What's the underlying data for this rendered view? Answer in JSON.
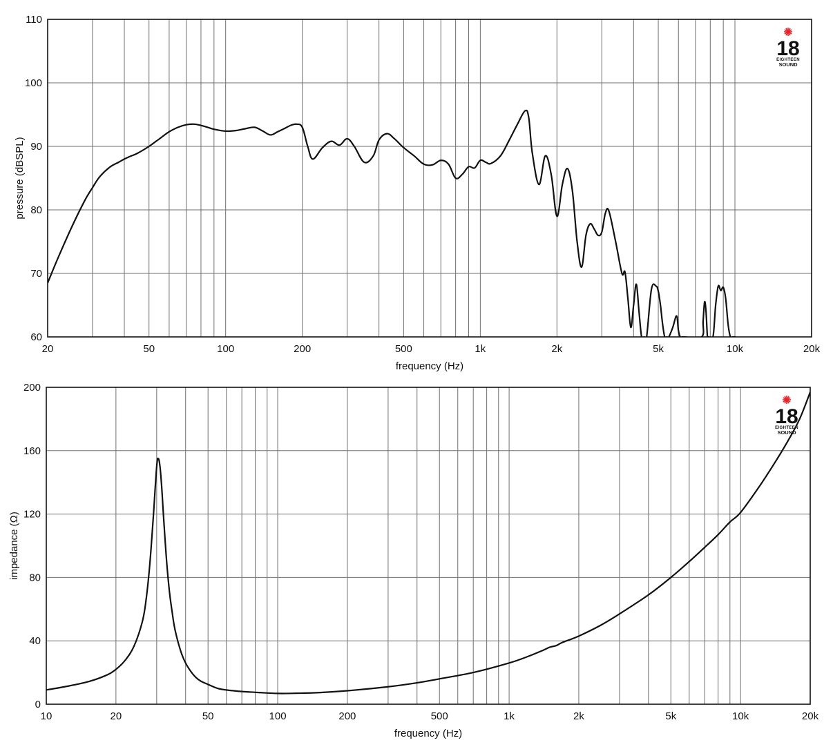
{
  "logo": {
    "number": "18",
    "line1": "EIGHTEEN",
    "line2": "SOUND",
    "star_color": "#e3262d"
  },
  "chart_data": [
    {
      "type": "line",
      "xscale": "log",
      "xlabel": "frequency (Hz)",
      "ylabel": "pressure (dBSPL)",
      "xlim": [
        20,
        20000
      ],
      "ylim": [
        60,
        110
      ],
      "grid": true,
      "x_tick_labels": [
        {
          "value": 20,
          "label": "20"
        },
        {
          "value": 50,
          "label": "50"
        },
        {
          "value": 100,
          "label": "100"
        },
        {
          "value": 200,
          "label": "200"
        },
        {
          "value": 500,
          "label": "500"
        },
        {
          "value": 1000,
          "label": "1k"
        },
        {
          "value": 2000,
          "label": "2k"
        },
        {
          "value": 5000,
          "label": "5k"
        },
        {
          "value": 10000,
          "label": "10k"
        },
        {
          "value": 20000,
          "label": "20k"
        }
      ],
      "y_ticks": [
        60,
        70,
        80,
        90,
        100,
        110
      ],
      "series": [
        {
          "x": [
            20,
            22,
            25,
            28,
            30,
            32,
            35,
            38,
            40,
            42,
            45,
            50,
            55,
            60,
            65,
            70,
            75,
            80,
            85,
            90,
            100,
            110,
            120,
            130,
            140,
            150,
            160,
            170,
            180,
            190,
            200,
            210,
            220,
            240,
            260,
            280,
            300,
            320,
            350,
            380,
            400,
            430,
            460,
            500,
            550,
            600,
            650,
            700,
            750,
            800,
            850,
            900,
            950,
            1000,
            1050,
            1100,
            1200,
            1300,
            1400,
            1500,
            1550,
            1600,
            1700,
            1800,
            1900,
            2000,
            2100,
            2200,
            2300,
            2400,
            2500,
            2600,
            2700,
            2800,
            2900,
            3000,
            3100,
            3200,
            3400,
            3600,
            3700,
            3800,
            3900,
            4000,
            4100,
            4200,
            4300,
            4400,
            4500,
            4700,
            4900,
            5000,
            5100,
            5200,
            5300,
            5400,
            5500,
            5700,
            5900,
            6000,
            6100,
            6200,
            6300,
            7400,
            7500,
            7600,
            7700,
            7800,
            7900,
            8200,
            8400,
            8600,
            8800,
            9000,
            9200,
            9400,
            9600,
            9800,
            10000
          ],
          "y": [
            68.5,
            72.5,
            77.5,
            81.5,
            83.5,
            85.2,
            86.7,
            87.5,
            88.0,
            88.4,
            88.9,
            90.0,
            91.2,
            92.3,
            93.0,
            93.4,
            93.5,
            93.3,
            93.0,
            92.7,
            92.4,
            92.5,
            92.8,
            93.0,
            92.4,
            91.8,
            92.3,
            92.8,
            93.3,
            93.5,
            93.0,
            90.0,
            88.0,
            89.8,
            90.8,
            90.2,
            91.2,
            90.0,
            87.5,
            88.5,
            91.0,
            92.0,
            91.2,
            89.8,
            88.5,
            87.2,
            87.1,
            87.8,
            87.2,
            85.0,
            85.6,
            86.8,
            86.6,
            87.8,
            87.5,
            87.3,
            88.5,
            91.0,
            93.5,
            95.6,
            94.5,
            89.0,
            84.0,
            88.5,
            85.5,
            79.0,
            84.0,
            86.5,
            83.0,
            75.0,
            71.0,
            76.0,
            77.8,
            77.0,
            76.0,
            76.5,
            79.5,
            79.8,
            75.0,
            70.0,
            70.2,
            66.0,
            61.5,
            65.0,
            68.3,
            64.0,
            60.0,
            60.0,
            60.0,
            67.5,
            68.0,
            67.2,
            65.0,
            62.0,
            60.0,
            60.0,
            60.0,
            61.5,
            63.3,
            61.0,
            60.0,
            60.0,
            60.0,
            60.0,
            62.5,
            65.5,
            64.0,
            60.0,
            60.0,
            60.0,
            65.0,
            68.0,
            67.3,
            67.8,
            66.0,
            62.0,
            60.0,
            60.0,
            60.0
          ]
        }
      ]
    },
    {
      "type": "line",
      "xscale": "log",
      "xlabel": "frequency (Hz)",
      "ylabel": "impedance (Ω)",
      "xlim": [
        10,
        20000
      ],
      "ylim": [
        0,
        200
      ],
      "grid": true,
      "x_tick_labels": [
        {
          "value": 10,
          "label": "10"
        },
        {
          "value": 20,
          "label": "20"
        },
        {
          "value": 50,
          "label": "50"
        },
        {
          "value": 100,
          "label": "100"
        },
        {
          "value": 200,
          "label": "200"
        },
        {
          "value": 500,
          "label": "500"
        },
        {
          "value": 1000,
          "label": "1k"
        },
        {
          "value": 2000,
          "label": "2k"
        },
        {
          "value": 5000,
          "label": "5k"
        },
        {
          "value": 10000,
          "label": "10k"
        },
        {
          "value": 20000,
          "label": "20k"
        }
      ],
      "y_ticks": [
        0,
        40,
        80,
        120,
        160,
        200
      ],
      "series": [
        {
          "x": [
            10,
            12,
            15,
            18,
            20,
            22,
            24,
            26,
            27,
            28,
            29,
            30,
            30.5,
            31,
            31.5,
            32,
            33,
            34,
            35,
            36,
            38,
            40,
            43,
            46,
            50,
            55,
            60,
            70,
            80,
            100,
            120,
            150,
            200,
            300,
            400,
            500,
            700,
            1000,
            1200,
            1400,
            1500,
            1600,
            1700,
            2000,
            2500,
            3000,
            4000,
            5000,
            6000,
            7000,
            8000,
            9000,
            10000,
            12000,
            14000,
            16000,
            18000,
            20000
          ],
          "y": [
            9,
            11,
            14,
            18,
            22,
            28,
            37,
            52,
            66,
            88,
            118,
            150,
            155,
            150,
            138,
            122,
            93,
            72,
            58,
            47,
            34,
            26,
            19,
            15,
            12.5,
            10,
            9,
            8,
            7.5,
            6.8,
            6.9,
            7.3,
            8.5,
            11,
            13.5,
            16,
            20,
            26,
            30,
            34,
            36,
            37,
            39,
            43,
            50,
            57,
            69,
            80,
            90,
            99,
            107,
            115,
            121,
            137,
            152,
            166,
            180,
            197
          ]
        }
      ]
    }
  ]
}
